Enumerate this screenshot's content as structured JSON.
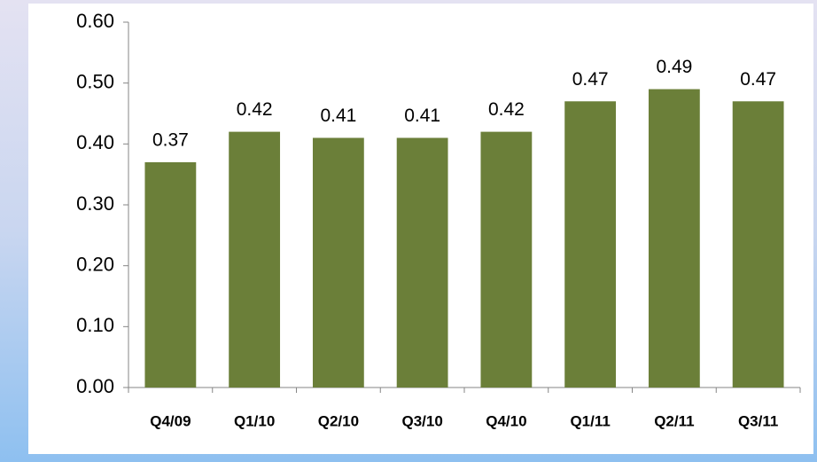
{
  "chart_data": {
    "type": "bar",
    "categories": [
      "Q4/09",
      "Q1/10",
      "Q2/10",
      "Q3/10",
      "Q4/10",
      "Q1/11",
      "Q2/11",
      "Q3/11"
    ],
    "values": [
      0.37,
      0.42,
      0.41,
      0.41,
      0.42,
      0.47,
      0.49,
      0.47
    ],
    "color": "#6b7f39",
    "ylim": [
      0,
      0.6
    ],
    "yticks": [
      {
        "value": 0,
        "label": "0.00"
      },
      {
        "value": 0.1,
        "label": "0.10"
      },
      {
        "value": 0.2,
        "label": "0.20"
      },
      {
        "value": 0.3,
        "label": "0.30"
      },
      {
        "value": 0.4,
        "label": "0.40"
      },
      {
        "value": 0.5,
        "label": "0.50"
      },
      {
        "value": 0.6,
        "label": "0.60"
      }
    ],
    "grid": false
  }
}
